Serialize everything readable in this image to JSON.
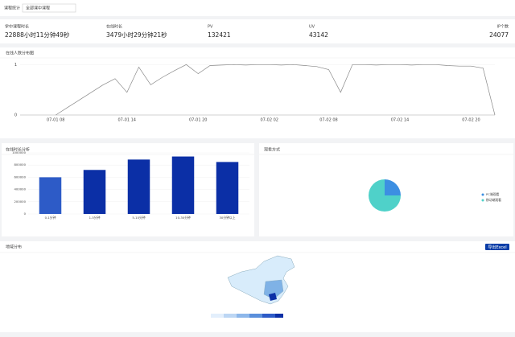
{
  "filter": {
    "label": "课程统计",
    "select": "全部课中课程"
  },
  "stats": [
    {
      "label": "学中课程时长",
      "value": "22888小时11分钟49秒"
    },
    {
      "label": "在线时长",
      "value": "3479小时29分钟21秒"
    },
    {
      "label": "PV",
      "value": "132421"
    },
    {
      "label": "UV",
      "value": "43142"
    },
    {
      "label": "IP个数",
      "value": "24077"
    }
  ],
  "charts": {
    "line": {
      "type": "line",
      "title": "在线人数分布图",
      "color": "#888888",
      "categories": [
        null,
        null,
        null,
        "07-01 08",
        null,
        null,
        null,
        null,
        null,
        "07-01 14",
        null,
        null,
        null,
        null,
        null,
        "07-01 20",
        null,
        null,
        null,
        null,
        null,
        "07-02 02",
        null,
        null,
        null,
        null,
        "07-02 08",
        null,
        null,
        null,
        null,
        null,
        "07-02 14",
        null,
        null,
        null,
        null,
        null,
        "07-02 20",
        null,
        null
      ],
      "values": [
        null,
        null,
        null,
        0,
        0.15,
        0.3,
        0.45,
        0.6,
        0.72,
        0.45,
        0.95,
        0.6,
        0.75,
        0.88,
        1,
        0.82,
        0.98,
        0.99,
        1,
        0.99,
        1,
        1,
        0.99,
        1,
        0.98,
        0.96,
        0.9,
        0.45,
        1,
        1,
        0.99,
        1,
        1,
        0.99,
        1,
        1,
        0.98,
        0.97,
        0.97,
        0.93,
        0
      ],
      "ylim": [
        0,
        1.1
      ],
      "yticks": [
        0,
        1
      ]
    },
    "bar": {
      "type": "bar",
      "title": "在线时长分析",
      "categories": [
        "0-1分钟",
        "1-5分钟",
        "5-10分钟",
        "10-30分钟",
        "30分钟以上"
      ],
      "values": [
        600000,
        720000,
        890000,
        940000,
        850000
      ],
      "colors": [
        "#2d5bc7",
        "#0b2fa6",
        "#0b2fa6",
        "#0b2fa6",
        "#0b2fa6"
      ],
      "ylim": [
        0,
        1000000
      ],
      "yticks": [
        0,
        200000,
        400000,
        600000,
        800000,
        1000000
      ]
    },
    "pie": {
      "type": "pie",
      "title": "观看方式",
      "series": [
        {
          "name": "PC端观看",
          "value": 25,
          "color": "#3c8fe2"
        },
        {
          "name": "移动端观看",
          "value": 75,
          "color": "#4fd1c9"
        }
      ]
    }
  },
  "map": {
    "title": "地域分布",
    "button": "导出Excel"
  }
}
